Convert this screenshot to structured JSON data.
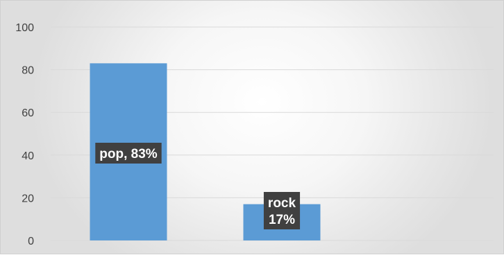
{
  "chart_data": {
    "type": "bar",
    "categories": [
      "pop",
      "rock"
    ],
    "values": [
      83,
      17
    ],
    "data_labels": [
      [
        "pop, 83%"
      ],
      [
        "rock",
        "17%"
      ]
    ],
    "title": "",
    "xlabel": "",
    "ylabel": "",
    "ylim": [
      0,
      100
    ],
    "yticks": [
      "0",
      "20",
      "40",
      "60",
      "80",
      "100"
    ],
    "grid": true,
    "legend": "none",
    "bar_color": "#5b9bd5",
    "label_background": "#404040",
    "gridline_color": "#d9d9d9"
  }
}
